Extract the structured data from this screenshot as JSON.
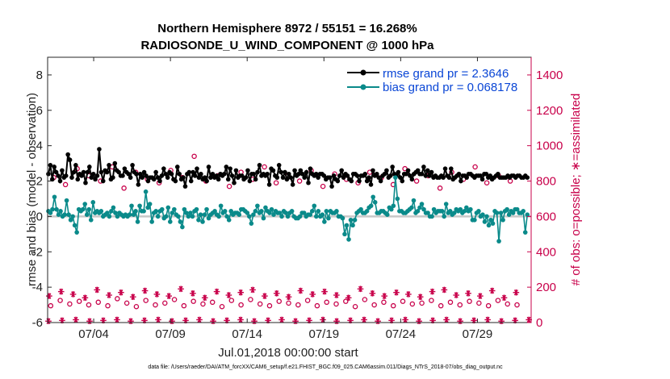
{
  "chart_data": {
    "type": "line",
    "title_line1": "Northern Hemisphere 8972 / 55151 = 16.268%",
    "title_line2": "RADIOSONDE_U_WIND_COMPONENT @ 1000 hPa",
    "ylabel_left": "rmse and bias (model - observation)",
    "ylabel_right": "# of obs: o=possible; ∗=assimilated",
    "xlabel": "Jul.01,2018 00:00:00 start",
    "footnote": "data file: /Users/raeder/DAI/ATM_forcXX/CAM6_setup/f.e21.FHIST_BGC.f09_025.CAM6assim.011/Diags_NTrS_2018-07/obs_diag_output.nc",
    "ylim_left": [
      -6,
      9
    ],
    "ylim_right": [
      0,
      1500
    ],
    "xlim": [
      0,
      31.5
    ],
    "yticks_left": [
      -6,
      -4,
      -2,
      0,
      2,
      4,
      6,
      8
    ],
    "yticks_right": [
      0,
      200,
      400,
      600,
      800,
      1000,
      1200,
      1400
    ],
    "xticks": [
      {
        "x": 3,
        "label": "07/04"
      },
      {
        "x": 8,
        "label": "07/09"
      },
      {
        "x": 13,
        "label": "07/14"
      },
      {
        "x": 18,
        "label": "07/19"
      },
      {
        "x": 23,
        "label": "07/24"
      },
      {
        "x": 28,
        "label": "07/29"
      }
    ],
    "grid": false,
    "legend": [
      {
        "label": "rmse grand pr = 2.3646",
        "color": "#000000"
      },
      {
        "label": "bias grand pr = 0.068178",
        "color": "#0a8a8a"
      }
    ],
    "legend_placement": "top-right",
    "series": [
      {
        "name": "rmse",
        "color": "#000000",
        "values": [
          2.4,
          2.9,
          2.1,
          2.8,
          2.5,
          2.3,
          2.0,
          2.6,
          2.2,
          2.3,
          3.5,
          3.2,
          2.2,
          2.5,
          2.9,
          2.1,
          2.4,
          2.3,
          2.5,
          1.9,
          2.5,
          2.8,
          2.2,
          2.4,
          2.1,
          2.3,
          3.8,
          2.5,
          2.0,
          2.6,
          2.5,
          2.9,
          2.1,
          2.2,
          3.0,
          2.6,
          2.5,
          2.3,
          2.3,
          2.7,
          2.5,
          2.4,
          2.2,
          2.9,
          2.5,
          2.4,
          1.8,
          2.4,
          2.2,
          2.5,
          2.3,
          2.0,
          2.2,
          2.2,
          2.1,
          2.5,
          2.2,
          2.0,
          2.3,
          2.7,
          2.4,
          2.2,
          2.5,
          2.4,
          2.1,
          2.0,
          2.8,
          2.4,
          2.1,
          2.2,
          1.7,
          2.4,
          2.5,
          2.0,
          2.5,
          2.3,
          2.7,
          2.2,
          2.4,
          2.1,
          2.2,
          2.0,
          2.8,
          2.2,
          2.4,
          2.2,
          2.3,
          2.1,
          2.4,
          2.3,
          2.4,
          2.8,
          2.1,
          2.7,
          2.3,
          1.9,
          2.6,
          2.2,
          2.3,
          2.3,
          2.1,
          2.2,
          2.6,
          2.0,
          2.4,
          2.4,
          2.1,
          2.5,
          2.9,
          2.3,
          2.4,
          2.3,
          2.4,
          1.8,
          2.7,
          2.6,
          2.3,
          2.2,
          2.9,
          2.5,
          2.2,
          2.5,
          2.1,
          2.4,
          2.2,
          1.8,
          2.6,
          2.3,
          2.4,
          2.6,
          2.4,
          2.2,
          2.5,
          1.9,
          2.7,
          2.4,
          2.3,
          2.4,
          2.2,
          2.4,
          2.4,
          2.3,
          2.1,
          2.2,
          2.2,
          1.7,
          2.3,
          2.1,
          2.0,
          2.3,
          2.6,
          2.2,
          2.4,
          2.3,
          2.1,
          2.0,
          2.4,
          2.4,
          2.3,
          2.0,
          2.3,
          2.3,
          2.4,
          2.0,
          2.2,
          1.8,
          2.6,
          2.3,
          2.4,
          2.2,
          2.0,
          2.3,
          2.4,
          2.6,
          2.2,
          2.3,
          2.8,
          2.4,
          2.3,
          2.5,
          2.2,
          2.0,
          2.4,
          2.4,
          2.6,
          2.3,
          2.1,
          2.4,
          2.5,
          2.6,
          2.4,
          2.4,
          2.8,
          2.3,
          2.6,
          2.3,
          2.5,
          2.2,
          2.3,
          2.2,
          2.2,
          2.3,
          2.2,
          2.7,
          2.3,
          2.2,
          2.7,
          2.1,
          2.2,
          2.3,
          2.4,
          2.0,
          2.3,
          2.3,
          2.2,
          2.4,
          2.4,
          2.3,
          2.2,
          2.3,
          2.3,
          2.3,
          2.1,
          2.4,
          2.4,
          2.2,
          2.3,
          2.1,
          2.2,
          2.3,
          2.4,
          2.2,
          2.2,
          2.2,
          2.2,
          2.3,
          2.2,
          2.3,
          2.3,
          2.2,
          2.3,
          2.3,
          2.2,
          2.2,
          2.3,
          2.2
        ]
      },
      {
        "name": "bias",
        "color": "#0a8a8a",
        "values": [
          0.3,
          0.2,
          0.4,
          1.1,
          0.4,
          0.1,
          0.3,
          0.0,
          0.1,
          0.9,
          0.1,
          -0.2,
          0.0,
          -0.5,
          -0.9,
          0.4,
          0.3,
          0.4,
          0.7,
          0.1,
          0.4,
          -0.2,
          0.8,
          0.2,
          0.3,
          0.2,
          0.3,
          0.0,
          0.1,
          0.2,
          0.0,
          0.3,
          0.5,
          0.2,
          0.0,
          0.2,
          0.1,
          0.0,
          0.1,
          0.0,
          0.1,
          0.6,
          0.1,
          0.3,
          -0.3,
          0.6,
          0.3,
          0.3,
          1.4,
          0.5,
          0.7,
          -0.3,
          0.2,
          0.3,
          0.0,
          0.3,
          0.4,
          -0.1,
          0.0,
          0.5,
          -0.3,
          0.2,
          0.4,
          0.1,
          0.0,
          -0.3,
          -0.6,
          0.4,
          0.2,
          0.0,
          0.2,
          0.0,
          0.3,
          0.4,
          -0.2,
          0.1,
          -0.3,
          0.1,
          0.4,
          -0.1,
          0.1,
          0.2,
          0.3,
          0.1,
          0.0,
          0.6,
          0.2,
          0.3,
          0.0,
          -0.2,
          0.3,
          0.1,
          0.2,
          0.2,
          0.1,
          0.4,
          0.4,
          0.3,
          0.2,
          0.0,
          -0.4,
          0.1,
          0.3,
          0.6,
          0.2,
          0.3,
          -0.1,
          0.5,
          0.3,
          0.2,
          0.4,
          0.1,
          0.3,
          0.2,
          0.2,
          0.0,
          0.3,
          0.2,
          0.0,
          0.2,
          0.3,
          0.0,
          -0.1,
          -0.1,
          0.0,
          0.2,
          0.2,
          0.0,
          0.1,
          0.1,
          0.3,
          0.6,
          0.0,
          0.3,
          0.0,
          0.1,
          -0.3,
          0.3,
          -0.1,
          0.3,
          0.2,
          0.2,
          0.3,
          0.0,
          0.0,
          -0.1,
          -1.0,
          -0.5,
          -1.3,
          -0.2,
          -0.5,
          -0.2,
          0.2,
          0.3,
          0.4,
          0.2,
          0.2,
          0.3,
          0.5,
          0.6,
          1.1,
          0.8,
          0.2,
          0.2,
          0.3,
          0.3,
          0.2,
          0.1,
          0.5,
          0.4,
          0.6,
          2.2,
          1.0,
          0.3,
          0.3,
          0.2,
          0.2,
          0.3,
          0.4,
          0.5,
          0.9,
          0.2,
          0.3,
          0.5,
          0.7,
          0.4,
          0.2,
          0.2,
          0.0,
          0.0,
          0.4,
          0.2,
          0.3,
          0.3,
          0.3,
          0.0,
          0.7,
          0.2,
          0.3,
          0.1,
          0.2,
          0.4,
          0.3,
          0.4,
          0.2,
          0.3,
          0.5,
          0.3,
          0.4,
          -0.2,
          -0.2,
          0.2,
          0.3,
          0.0,
          0.1,
          -0.3,
          0.0,
          -0.5,
          -0.2,
          -0.4,
          0.3,
          0.2,
          -1.4,
          0.2,
          -0.2,
          0.3,
          0.4,
          0.1,
          0.3,
          0.2,
          0.4,
          0.4,
          0.2,
          0.2,
          0.3,
          -0.9,
          0.1
        ]
      },
      {
        "name": "obs possible",
        "color": "#c8004a",
        "values": [
          95,
          125,
          105,
          120,
          100,
          115,
          95,
          135,
          110,
          90,
          125,
          100,
          110,
          130,
          95,
          120,
          105,
          115,
          90,
          125,
          100,
          130,
          105,
          95,
          120,
          110,
          100,
          125,
          95,
          115,
          105,
          120,
          90,
          130,
          100,
          115,
          95,
          120,
          105,
          110,
          125,
          95,
          115,
          100,
          120,
          110,
          95,
          125,
          105,
          100
        ]
      },
      {
        "name": "obs possible (upper cloud)",
        "color": "#c8004a",
        "values": [
          820,
          780,
          870,
          830,
          800,
          880,
          760,
          850,
          810,
          790,
          860,
          820,
          940,
          800,
          830,
          770,
          850,
          810,
          880,
          790,
          830,
          800,
          860,
          770,
          840,
          810,
          790,
          850,
          820,
          780,
          870,
          800,
          830,
          760,
          850,
          810,
          880,
          790,
          830,
          800
        ]
      },
      {
        "name": "obs assimilated",
        "color": "#c8004a",
        "values": [
          150,
          175,
          160,
          140,
          185,
          155,
          170,
          145,
          180,
          160,
          150,
          190,
          165,
          140,
          175,
          155,
          170,
          185,
          150,
          165,
          145,
          180,
          160,
          175,
          155,
          140,
          190,
          165,
          150,
          170,
          160,
          145,
          175,
          185,
          155,
          165,
          150,
          180,
          140,
          170
        ]
      }
    ]
  }
}
